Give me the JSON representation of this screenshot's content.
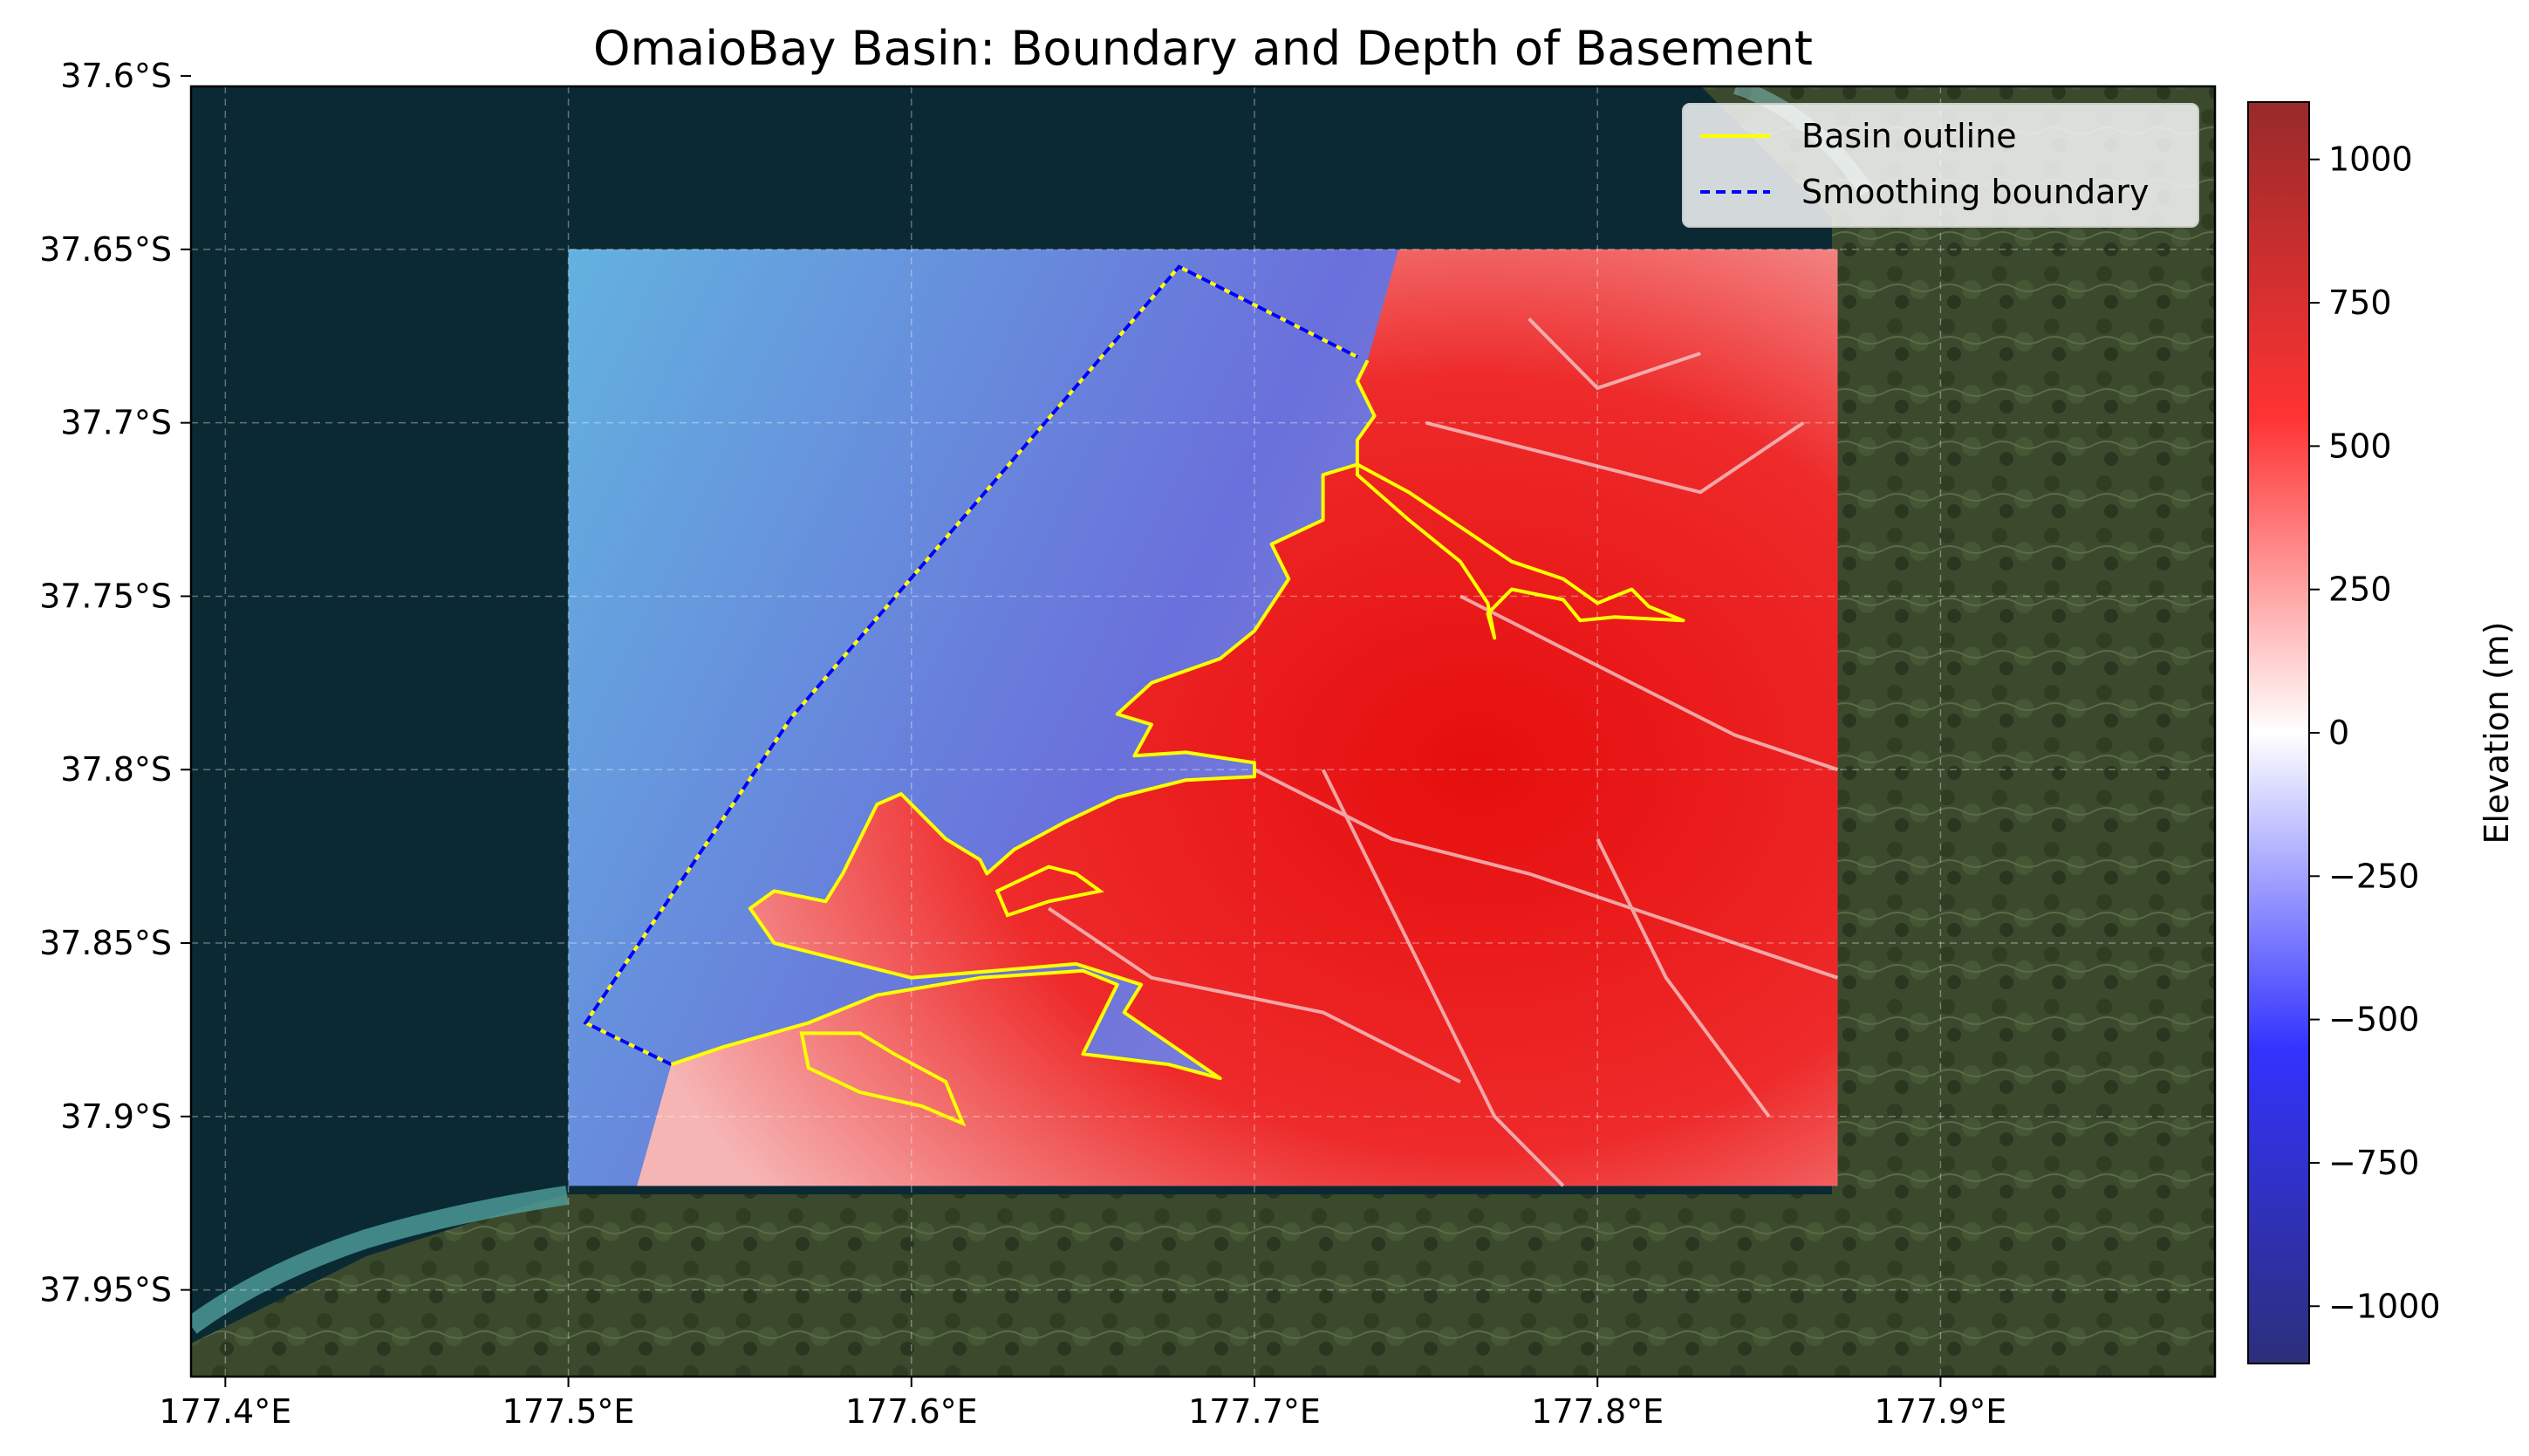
{
  "title": "OmaioBay Basin: Boundary and Depth of Basement",
  "map": {
    "x_ticks": [
      {
        "value": 177.4,
        "label": "177.4°E"
      },
      {
        "value": 177.5,
        "label": "177.5°E"
      },
      {
        "value": 177.6,
        "label": "177.6°E"
      },
      {
        "value": 177.7,
        "label": "177.7°E"
      },
      {
        "value": 177.8,
        "label": "177.8°E"
      },
      {
        "value": 177.9,
        "label": "177.9°E"
      }
    ],
    "y_ticks": [
      {
        "value": -37.6,
        "label": "37.6°S"
      },
      {
        "value": -37.65,
        "label": "37.65°S"
      },
      {
        "value": -37.7,
        "label": "37.7°S"
      },
      {
        "value": -37.75,
        "label": "37.75°S"
      },
      {
        "value": -37.8,
        "label": "37.8°S"
      },
      {
        "value": -37.85,
        "label": "37.85°S"
      },
      {
        "value": -37.9,
        "label": "37.9°S"
      },
      {
        "value": -37.95,
        "label": "37.95°S"
      }
    ],
    "lon_range": [
      177.39,
      177.98
    ],
    "lat_range": [
      -37.975,
      -37.603
    ],
    "grid": true,
    "raster_extent": {
      "lon": [
        177.5,
        177.87
      ],
      "lat": [
        -37.92,
        -37.65
      ]
    },
    "legend": {
      "position": "top-right",
      "entries": [
        {
          "label": "Basin outline",
          "color": "#ffff00",
          "style": "solid"
        },
        {
          "label": "Smoothing boundary",
          "color": "#0000ff",
          "style": "dashed"
        }
      ]
    },
    "smoothing_boundary": [
      [
        177.53,
        -37.885
      ],
      [
        177.505,
        -37.873
      ],
      [
        177.565,
        -37.785
      ],
      [
        177.678,
        -37.655
      ],
      [
        177.73,
        -37.681
      ]
    ],
    "basin_outline": [
      [
        177.53,
        -37.885
      ],
      [
        177.545,
        -37.88
      ],
      [
        177.57,
        -37.873
      ],
      [
        177.59,
        -37.865
      ],
      [
        177.62,
        -37.86
      ],
      [
        177.65,
        -37.858
      ],
      [
        177.66,
        -37.862
      ],
      [
        177.655,
        -37.872
      ],
      [
        177.65,
        -37.882
      ],
      [
        177.675,
        -37.885
      ],
      [
        177.69,
        -37.889
      ],
      [
        177.662,
        -37.87
      ],
      [
        177.667,
        -37.862
      ],
      [
        177.648,
        -37.856
      ],
      [
        177.6,
        -37.86
      ],
      [
        177.58,
        -37.855
      ],
      [
        177.56,
        -37.85
      ],
      [
        177.553,
        -37.84
      ],
      [
        177.56,
        -37.835
      ],
      [
        177.575,
        -37.838
      ],
      [
        177.58,
        -37.83
      ],
      [
        177.585,
        -37.82
      ],
      [
        177.59,
        -37.81
      ],
      [
        177.597,
        -37.807
      ],
      [
        177.602,
        -37.812
      ],
      [
        177.61,
        -37.82
      ],
      [
        177.62,
        -37.826
      ],
      [
        177.622,
        -37.83
      ],
      [
        177.63,
        -37.823
      ],
      [
        177.645,
        -37.815
      ],
      [
        177.66,
        -37.808
      ],
      [
        177.68,
        -37.803
      ],
      [
        177.7,
        -37.802
      ],
      [
        177.7,
        -37.798
      ],
      [
        177.68,
        -37.795
      ],
      [
        177.665,
        -37.796
      ],
      [
        177.67,
        -37.787
      ],
      [
        177.66,
        -37.784
      ],
      [
        177.67,
        -37.775
      ],
      [
        177.69,
        -37.768
      ],
      [
        177.7,
        -37.76
      ],
      [
        177.71,
        -37.745
      ],
      [
        177.705,
        -37.735
      ],
      [
        177.72,
        -37.728
      ],
      [
        177.72,
        -37.715
      ],
      [
        177.73,
        -37.712
      ],
      [
        177.745,
        -37.72
      ],
      [
        177.76,
        -37.73
      ],
      [
        177.775,
        -37.74
      ],
      [
        177.79,
        -37.745
      ],
      [
        177.8,
        -37.752
      ],
      [
        177.81,
        -37.748
      ],
      [
        177.815,
        -37.753
      ],
      [
        177.825,
        -37.757
      ],
      [
        177.805,
        -37.756
      ],
      [
        177.795,
        -37.757
      ],
      [
        177.79,
        -37.751
      ],
      [
        177.775,
        -37.748
      ],
      [
        177.768,
        -37.755
      ],
      [
        177.77,
        -37.762
      ],
      [
        177.768,
        -37.752
      ],
      [
        177.76,
        -37.74
      ],
      [
        177.745,
        -37.728
      ],
      [
        177.73,
        -37.715
      ],
      [
        177.73,
        -37.705
      ],
      [
        177.735,
        -37.698
      ],
      [
        177.73,
        -37.688
      ],
      [
        177.733,
        -37.682
      ]
    ],
    "inner_outline": [
      [
        177.625,
        -37.835
      ],
      [
        177.64,
        -37.828
      ],
      [
        177.648,
        -37.83
      ],
      [
        177.655,
        -37.835
      ],
      [
        177.64,
        -37.838
      ],
      [
        177.628,
        -37.842
      ]
    ],
    "south_outline": [
      [
        177.568,
        -37.876
      ],
      [
        177.585,
        -37.876
      ],
      [
        177.595,
        -37.882
      ],
      [
        177.61,
        -37.89
      ],
      [
        177.615,
        -37.902
      ],
      [
        177.603,
        -37.897
      ],
      [
        177.585,
        -37.893
      ],
      [
        177.57,
        -37.886
      ]
    ]
  },
  "colorbar": {
    "label": "Elevation (m)",
    "range": [
      -1100,
      1100
    ],
    "colors": [
      "#2c2f7a",
      "#3333ff",
      "#ffffff",
      "#ff3333",
      "#982a2a"
    ],
    "ticks": [
      {
        "value": 1000,
        "label": "1000"
      },
      {
        "value": 750,
        "label": "750"
      },
      {
        "value": 500,
        "label": "500"
      },
      {
        "value": 250,
        "label": "250"
      },
      {
        "value": 0,
        "label": "0"
      },
      {
        "value": -250,
        "label": "−250"
      },
      {
        "value": -500,
        "label": "−500"
      },
      {
        "value": -750,
        "label": "−750"
      },
      {
        "value": -1000,
        "label": "−1000"
      }
    ]
  }
}
